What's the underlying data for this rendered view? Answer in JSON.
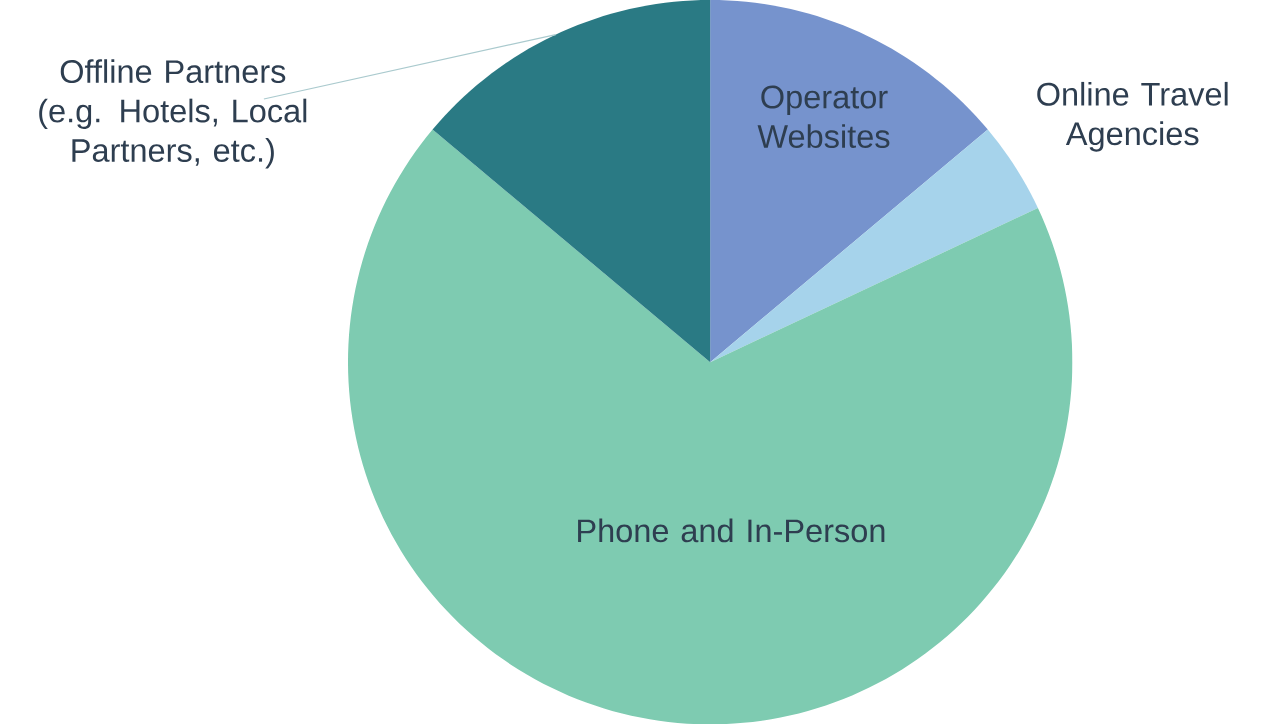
{
  "chart_data": {
    "type": "pie",
    "categories": [
      "Operator Websites",
      "Online Travel Agencies",
      "Phone and In-Person",
      "Offline Partners (e.g. Hotels, Local Partners, etc.)"
    ],
    "values": [
      13.9,
      4.1,
      68.1,
      13.9
    ],
    "colors": [
      "#7693cd",
      "#a6d3eb",
      "#7ecbb1",
      "#2a7a84"
    ]
  }
}
